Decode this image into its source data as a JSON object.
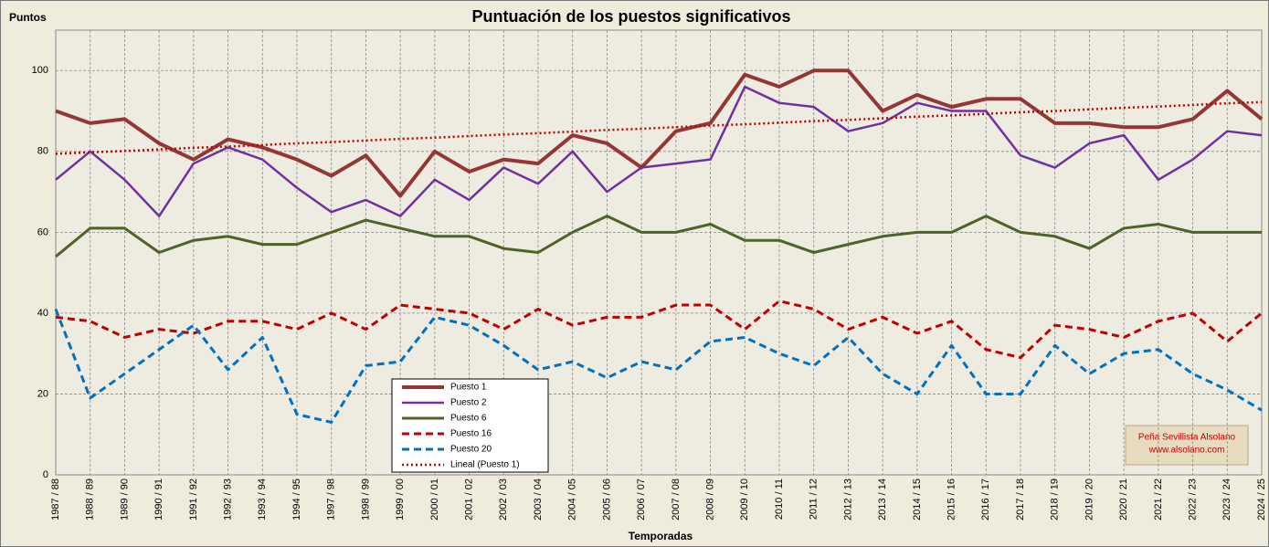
{
  "chart_data": {
    "type": "line",
    "title": "Puntuación de los puestos significativos",
    "y_label": "Puntos",
    "x_label": "Temporadas",
    "watermark": [
      "Peña Sevillista Alsolano",
      "www.alsolano.com"
    ],
    "categories": [
      "1987 / 88",
      "1988 / 89",
      "1989 / 90",
      "1990 / 91",
      "1991 / 92",
      "1992 / 93",
      "1993 / 94",
      "1994 / 95",
      "1997 / 98",
      "1998 / 99",
      "1999 / 00",
      "2000 / 01",
      "2001 / 02",
      "2002 / 03",
      "2003 / 04",
      "2004 / 05",
      "2005 / 06",
      "2006 / 07",
      "2007 / 08",
      "2008 / 09",
      "2009 / 10",
      "2010 / 11",
      "2011 / 12",
      "2012 / 13",
      "2013 / 14",
      "2014 / 15",
      "2015 / 16",
      "2016 / 17",
      "2017 / 18",
      "2018 / 19",
      "2019 / 20",
      "2020 / 21",
      "2021 / 22",
      "2022 / 23",
      "2023 / 24",
      "2024 / 25"
    ],
    "series": [
      {
        "name": "Puesto 1",
        "color": "#943634",
        "style": "solid",
        "values": [
          90,
          87,
          88,
          82,
          78,
          83,
          81,
          78,
          74,
          79,
          69,
          80,
          75,
          78,
          77,
          84,
          82,
          76,
          85,
          87,
          99,
          96,
          100,
          100,
          90,
          94,
          91,
          93,
          93,
          87,
          87,
          86,
          86,
          88,
          95,
          88
        ]
      },
      {
        "name": "Puesto 2",
        "color": "#7030a0",
        "style": "solid",
        "values": [
          73,
          80,
          73,
          64,
          77,
          81,
          78,
          71,
          65,
          68,
          64,
          73,
          68,
          76,
          72,
          80,
          70,
          76,
          77,
          78,
          96,
          92,
          91,
          85,
          87,
          92,
          90,
          90,
          79,
          76,
          82,
          84,
          73,
          78,
          85,
          84
        ]
      },
      {
        "name": "Puesto 6",
        "color": "#4f6228",
        "style": "solid",
        "values": [
          54,
          61,
          61,
          55,
          58,
          59,
          57,
          57,
          60,
          63,
          61,
          59,
          59,
          56,
          55,
          60,
          64,
          60,
          60,
          62,
          58,
          58,
          55,
          57,
          59,
          60,
          60,
          64,
          60,
          59,
          56,
          61,
          62,
          60,
          60,
          60
        ]
      },
      {
        "name": "Puesto 16",
        "color": "#c00000",
        "style": "dashed",
        "values": [
          39,
          38,
          34,
          36,
          35,
          38,
          38,
          36,
          40,
          36,
          42,
          41,
          40,
          36,
          41,
          37,
          39,
          39,
          42,
          42,
          36,
          43,
          41,
          36,
          39,
          35,
          38,
          31,
          29,
          37,
          36,
          34,
          38,
          40,
          33,
          40
        ]
      },
      {
        "name": "Puesto 20",
        "color": "#0070c0",
        "style": "dashed",
        "values": [
          41,
          19,
          25,
          31,
          37,
          26,
          34,
          15,
          13,
          27,
          28,
          39,
          37,
          32,
          26,
          28,
          24,
          28,
          26,
          33,
          34,
          30,
          27,
          34,
          25,
          20,
          32,
          20,
          20,
          32,
          25,
          30,
          31,
          25,
          21,
          16
        ]
      },
      {
        "name": "Lineal (Puesto 1)",
        "color": "#c00000",
        "style": "dotted",
        "values": [
          79.4,
          79.8,
          80.1,
          80.5,
          80.9,
          81.2,
          81.6,
          82.0,
          82.3,
          82.7,
          83.1,
          83.4,
          83.8,
          84.2,
          84.5,
          84.9,
          85.3,
          85.6,
          86.0,
          86.4,
          86.7,
          87.1,
          87.5,
          87.8,
          88.2,
          88.6,
          88.9,
          89.3,
          89.7,
          90.0,
          90.4,
          90.8,
          91.1,
          91.5,
          91.9,
          92.2
        ]
      }
    ],
    "ylim": [
      0,
      110
    ],
    "yticks": [
      0,
      20,
      40,
      60,
      80,
      100
    ],
    "grid": true
  }
}
